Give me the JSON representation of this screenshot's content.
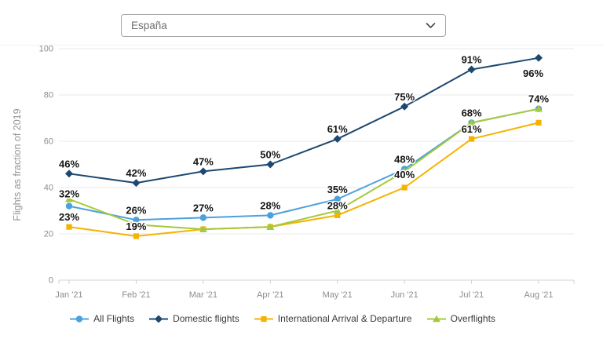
{
  "dropdown": {
    "value": "España"
  },
  "chart_data": {
    "type": "line",
    "title": "",
    "ylabel": "Flights as fraction of 2019",
    "xlabel": "",
    "ylim": [
      0,
      100
    ],
    "yticks": [
      0,
      20,
      40,
      60,
      80,
      100
    ],
    "grid": true,
    "legend_position": "bottom",
    "categories": [
      "Jan '21",
      "Feb '21",
      "Mar '21",
      "Apr '21",
      "May '21",
      "Jun '21",
      "Jul '21",
      "Aug '21"
    ],
    "series": [
      {
        "name": "All Flights",
        "color": "#4aa1e0",
        "marker": "circle",
        "values": [
          32,
          26,
          27,
          28,
          35,
          48,
          68,
          74
        ],
        "labels": [
          "32%",
          "26%",
          "27%",
          "28%",
          "35%",
          "48%",
          "68%",
          "74%"
        ],
        "label_offsets": {
          "0": [
            0,
            -11
          ]
        }
      },
      {
        "name": "Domestic flights",
        "color": "#1c4870",
        "marker": "diamond",
        "values": [
          46,
          42,
          47,
          50,
          61,
          75,
          91,
          96
        ],
        "labels": [
          "46%",
          "42%",
          "47%",
          "50%",
          "61%",
          "75%",
          "91%",
          "96%"
        ],
        "label_offsets": {
          "7": [
            -7,
            24
          ]
        }
      },
      {
        "name": "International Arrival & Departure",
        "color": "#f5b301",
        "marker": "square",
        "values": [
          23,
          19,
          22,
          23,
          28,
          40,
          61,
          68
        ],
        "labels": [
          "23%",
          "19%",
          null,
          null,
          "28%",
          "40%",
          "61%",
          null
        ],
        "label_offsets": {
          "5": [
            0,
            -12
          ]
        }
      },
      {
        "name": "Overflights",
        "color": "#a5c93c",
        "marker": "triangle",
        "values": [
          35,
          24,
          22,
          23,
          30,
          47,
          68,
          74
        ],
        "labels": [
          null,
          null,
          null,
          null,
          null,
          null,
          null,
          null
        ],
        "label_offsets": {}
      }
    ]
  }
}
